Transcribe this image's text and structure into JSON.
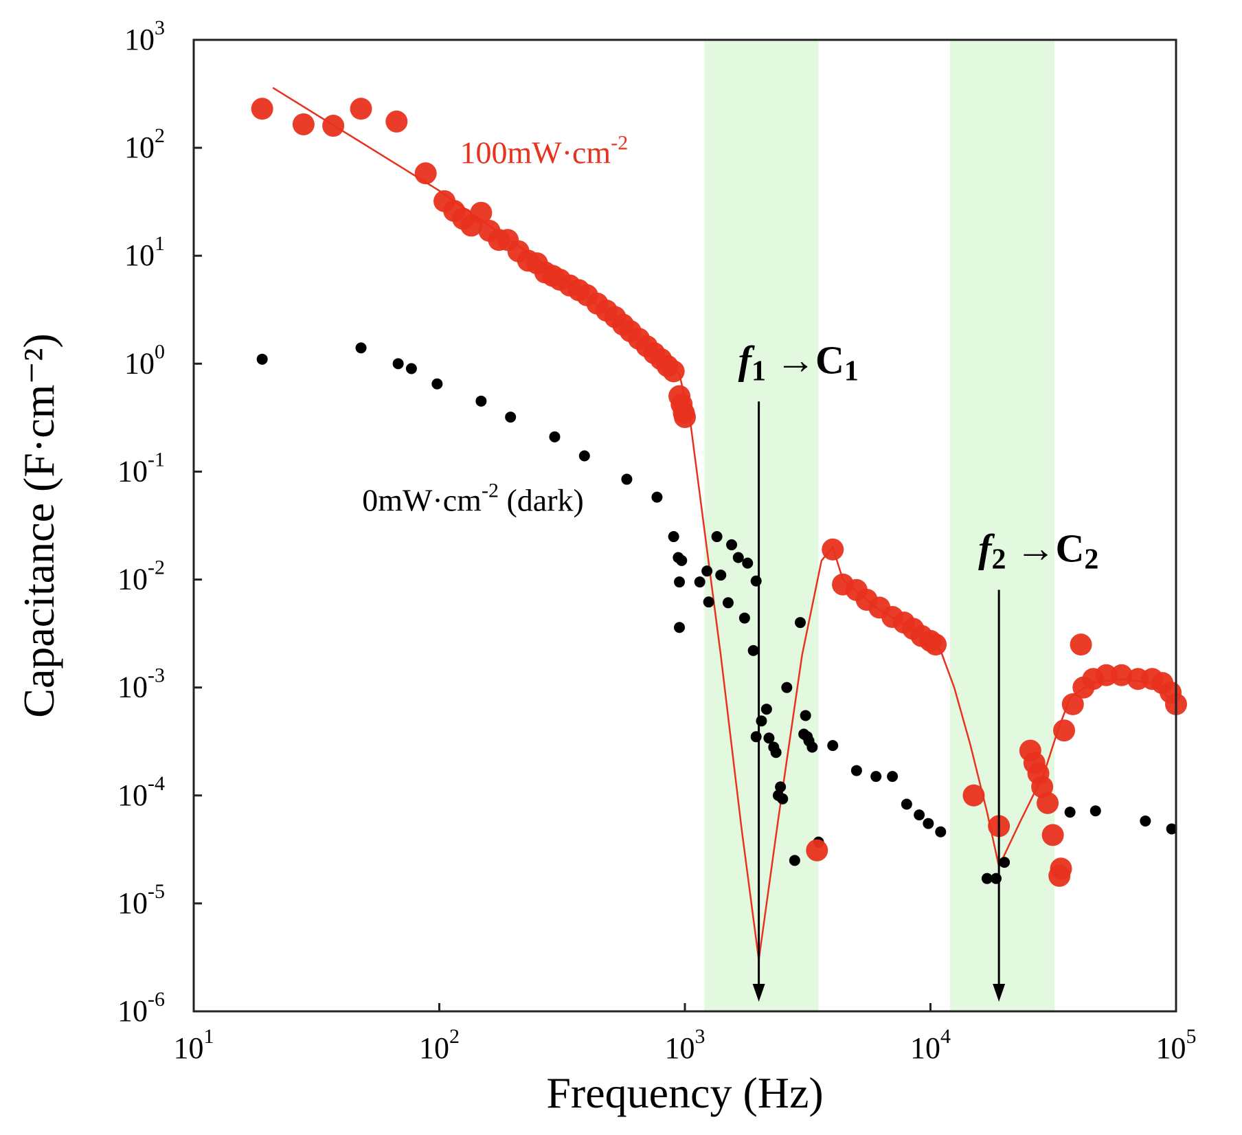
{
  "chart_data": {
    "type": "scatter",
    "xlabel": "Frequency (Hz)",
    "ylabel": "Capacitance (F·cm⁻²)",
    "xscale": "log",
    "yscale": "log",
    "xlim": [
      10,
      100000
    ],
    "ylim": [
      1e-06,
      1000
    ],
    "grid": false,
    "x_ticks": [
      {
        "base": "10",
        "exp": "1",
        "value": 10
      },
      {
        "base": "10",
        "exp": "2",
        "value": 100
      },
      {
        "base": "10",
        "exp": "3",
        "value": 1000
      },
      {
        "base": "10",
        "exp": "4",
        "value": 10000
      },
      {
        "base": "10",
        "exp": "5",
        "value": 100000
      }
    ],
    "y_ticks": [
      {
        "base": "10",
        "exp": "3",
        "value": 1000
      },
      {
        "base": "10",
        "exp": "2",
        "value": 100
      },
      {
        "base": "10",
        "exp": "1",
        "value": 10
      },
      {
        "base": "10",
        "exp": "0",
        "value": 1
      },
      {
        "base": "10",
        "exp": "-1",
        "value": 0.1
      },
      {
        "base": "10",
        "exp": "-2",
        "value": 0.01
      },
      {
        "base": "10",
        "exp": "-3",
        "value": 0.001
      },
      {
        "base": "10",
        "exp": "-4",
        "value": 0.0001
      },
      {
        "base": "10",
        "exp": "-5",
        "value": 1e-05
      },
      {
        "base": "10",
        "exp": "-6",
        "value": 1e-06
      }
    ],
    "shaded_regions": [
      {
        "x_range": [
          1200,
          3500
        ],
        "color": "#e2f9e0"
      },
      {
        "x_range": [
          12000,
          32000
        ],
        "color": "#e2f9e0"
      }
    ],
    "series": [
      {
        "name": "100mW·cm-2",
        "color": "#e8321e",
        "points": [
          [
            19,
            230
          ],
          [
            28,
            165
          ],
          [
            37,
            160
          ],
          [
            48,
            230
          ],
          [
            67,
            175
          ],
          [
            88,
            58
          ],
          [
            105,
            32
          ],
          [
            115,
            26
          ],
          [
            125,
            22
          ],
          [
            135,
            19
          ],
          [
            148,
            25
          ],
          [
            160,
            17
          ],
          [
            175,
            14
          ],
          [
            190,
            14
          ],
          [
            210,
            11
          ],
          [
            230,
            9
          ],
          [
            250,
            8.5
          ],
          [
            270,
            7
          ],
          [
            290,
            6.5
          ],
          [
            310,
            6
          ],
          [
            340,
            5.3
          ],
          [
            370,
            4.8
          ],
          [
            400,
            4.3
          ],
          [
            440,
            3.6
          ],
          [
            480,
            3.1
          ],
          [
            520,
            2.7
          ],
          [
            560,
            2.3
          ],
          [
            600,
            2.0
          ],
          [
            650,
            1.7
          ],
          [
            700,
            1.45
          ],
          [
            750,
            1.25
          ],
          [
            800,
            1.1
          ],
          [
            850,
            0.95
          ],
          [
            900,
            0.85
          ],
          [
            950,
            0.5
          ],
          [
            970,
            0.42
          ],
          [
            990,
            0.35
          ],
          [
            1000,
            0.32
          ],
          [
            4000,
            0.019
          ],
          [
            4400,
            0.009
          ],
          [
            5000,
            0.008
          ],
          [
            5500,
            0.0065
          ],
          [
            6200,
            0.0055
          ],
          [
            7000,
            0.0045
          ],
          [
            7800,
            0.004
          ],
          [
            8500,
            0.0035
          ],
          [
            9200,
            0.003
          ],
          [
            10000,
            0.0027
          ],
          [
            10500,
            0.0025
          ],
          [
            3450,
            3.1e-05
          ],
          [
            15000,
            0.0001
          ],
          [
            19000,
            5.2e-05
          ],
          [
            25500,
            0.00026
          ],
          [
            26500,
            0.0002
          ],
          [
            27500,
            0.00016
          ],
          [
            28500,
            0.00012
          ],
          [
            30000,
            8.5e-05
          ],
          [
            31500,
            4.3e-05
          ],
          [
            34000,
            2.1e-05
          ],
          [
            33500,
            1.8e-05
          ],
          [
            41000,
            0.0025
          ],
          [
            35000,
            0.0004
          ],
          [
            38000,
            0.0007
          ],
          [
            42000,
            0.001
          ],
          [
            46000,
            0.0012
          ],
          [
            52000,
            0.0013
          ],
          [
            60000,
            0.0013
          ],
          [
            70000,
            0.0012
          ],
          [
            80000,
            0.0012
          ],
          [
            88000,
            0.0011
          ],
          [
            95000,
            0.0009
          ],
          [
            100000,
            0.0007
          ]
        ]
      },
      {
        "name": "0mW·cm-2 (dark)",
        "color": "#000000",
        "points": [
          [
            19,
            1.1
          ],
          [
            48,
            1.4
          ],
          [
            68,
            1.0
          ],
          [
            77,
            0.9
          ],
          [
            98,
            0.65
          ],
          [
            148,
            0.45
          ],
          [
            195,
            0.32
          ],
          [
            295,
            0.21
          ],
          [
            390,
            0.14
          ],
          [
            580,
            0.085
          ],
          [
            770,
            0.058
          ],
          [
            900,
            0.025
          ],
          [
            940,
            0.016
          ],
          [
            970,
            0.015
          ],
          [
            950,
            0.0095
          ],
          [
            950,
            0.0036
          ],
          [
            1150,
            0.0095
          ],
          [
            1230,
            0.012
          ],
          [
            1250,
            0.0062
          ],
          [
            1350,
            0.025
          ],
          [
            1400,
            0.011
          ],
          [
            1500,
            0.0061
          ],
          [
            1550,
            0.021
          ],
          [
            1650,
            0.016
          ],
          [
            1750,
            0.0044
          ],
          [
            1800,
            0.0142
          ],
          [
            1900,
            0.0022
          ],
          [
            1950,
            0.0097
          ],
          [
            1950,
            0.00035
          ],
          [
            2050,
            0.00049
          ],
          [
            2150,
            0.00063
          ],
          [
            2200,
            0.00034
          ],
          [
            2300,
            0.00028
          ],
          [
            2350,
            0.00025
          ],
          [
            2400,
            0.0001
          ],
          [
            2450,
            0.00012
          ],
          [
            2500,
            9.3e-05
          ],
          [
            2600,
            0.001
          ],
          [
            2800,
            2.5e-05
          ],
          [
            2950,
            0.004
          ],
          [
            3050,
            0.00037
          ],
          [
            3100,
            0.00055
          ],
          [
            3150,
            0.00035
          ],
          [
            3200,
            0.00032
          ],
          [
            3300,
            0.00028
          ],
          [
            3500,
            3.7e-05
          ],
          [
            4000,
            0.00029
          ],
          [
            5000,
            0.00017
          ],
          [
            6000,
            0.00015
          ],
          [
            7000,
            0.00015
          ],
          [
            8000,
            8.3e-05
          ],
          [
            9000,
            6.6e-05
          ],
          [
            9800,
            5.5e-05
          ],
          [
            11000,
            4.6e-05
          ],
          [
            17000,
            1.7e-05
          ],
          [
            18500,
            1.7e-05
          ],
          [
            20000,
            2.4e-05
          ],
          [
            37000,
            7e-05
          ],
          [
            47000,
            7.2e-05
          ],
          [
            75000,
            5.8e-05
          ],
          [
            96000,
            4.9e-05
          ]
        ]
      }
    ],
    "fit_line": {
      "color": "#e8321e",
      "points": [
        [
          21,
          360
        ],
        [
          100,
          40
        ],
        [
          300,
          7
        ],
        [
          700,
          1.5
        ],
        [
          950,
          0.8
        ],
        [
          1050,
          0.3
        ],
        [
          1400,
          0.002
        ],
        [
          1700,
          5e-05
        ],
        [
          2000,
          3e-06
        ],
        [
          2400,
          6e-05
        ],
        [
          3000,
          0.002
        ],
        [
          3600,
          0.015
        ],
        [
          4000,
          0.02
        ],
        [
          4400,
          0.01
        ],
        [
          6000,
          0.0055
        ],
        [
          8000,
          0.0037
        ],
        [
          10000,
          0.0026
        ],
        [
          11000,
          0.0022
        ],
        [
          12500,
          0.001
        ],
        [
          14500,
          0.0003
        ],
        [
          17000,
          7e-05
        ],
        [
          19000,
          2.2e-05
        ],
        [
          23000,
          5.5e-05
        ],
        [
          29000,
          0.00016
        ],
        [
          33000,
          0.0004
        ],
        [
          37000,
          0.0008
        ],
        [
          45000,
          0.0011
        ],
        [
          60000,
          0.0012
        ],
        [
          80000,
          0.0011
        ],
        [
          100000,
          0.0007
        ]
      ]
    },
    "annotations": [
      {
        "id": "f1",
        "symbol": "f",
        "sub": "1",
        "arrow": "→",
        "target": "C",
        "target_sub": "1",
        "x": 2000,
        "label_y": 1.0,
        "arrow_to": 1e-06
      },
      {
        "id": "f2",
        "symbol": "f",
        "sub": "2",
        "arrow": "→",
        "target": "C",
        "target_sub": "2",
        "x": 19000,
        "label_y": 0.018,
        "arrow_to": 1e-06
      }
    ],
    "series_labels": [
      {
        "series": 0,
        "text": "100mW·cm",
        "sup": "-2",
        "suffix": "",
        "x": 100,
        "y": 150
      },
      {
        "series": 1,
        "text": "0mW·cm",
        "sup": "-2",
        "suffix": " (dark)",
        "x": 40,
        "y": 0.09
      }
    ]
  }
}
